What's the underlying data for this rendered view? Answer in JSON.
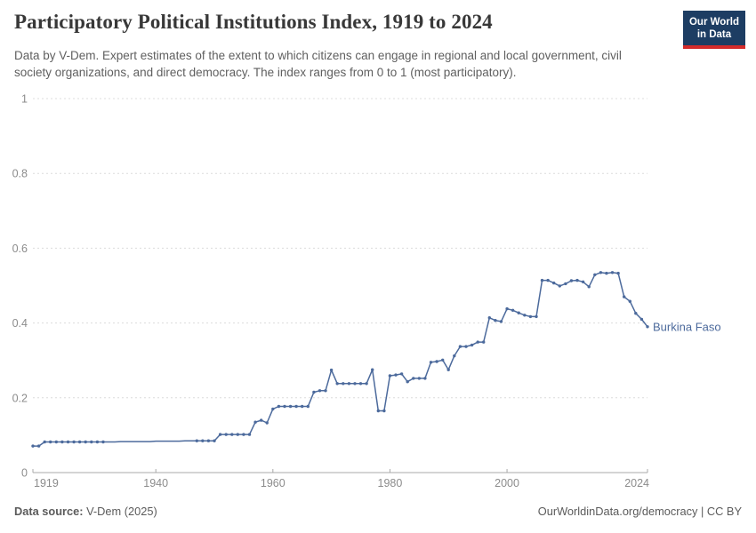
{
  "header": {
    "title": "Participatory Political Institutions Index, 1919 to 2024",
    "logo_line1": "Our World",
    "logo_line2": "in Data"
  },
  "subtitle": "Data by V-Dem. Expert estimates of the extent to which citizens can engage in regional and local government, civil society organizations, and direct democracy. The index ranges from 0 to 1 (most participatory).",
  "footer": {
    "source_label": "Data source:",
    "source_value": "V-Dem (2025)",
    "credit": "OurWorldinData.org/democracy | CC BY"
  },
  "colors": {
    "accent": "#4C6A9C",
    "logo_navy": "#1D3D63",
    "logo_red": "#D42B2B",
    "grid": "#DCDCDC",
    "axis": "#A8A8A8",
    "tick_label": "#8C8C8C",
    "text_muted": "#5B5B5B"
  },
  "chart_data": {
    "type": "line",
    "title": "Participatory Political Institutions Index, 1919 to 2024",
    "entity": "Burkina Faso",
    "xlabel": "",
    "ylabel": "",
    "xlim": [
      1919,
      2024
    ],
    "ylim": [
      0,
      1
    ],
    "x_ticks": [
      1919,
      1940,
      1960,
      1980,
      2000,
      2024
    ],
    "y_ticks": [
      0,
      0.2,
      0.4,
      0.6,
      0.8,
      1
    ],
    "y_tick_labels": [
      "0",
      "0.2",
      "0.4",
      "0.6",
      "0.8",
      "1"
    ],
    "grid": "dashed-horizontal",
    "legend_position": "end-of-line-label",
    "line_color": "#4C6A9C",
    "marker_gap_years": [
      1932,
      1946
    ],
    "points": [
      [
        1919,
        0.071
      ],
      [
        1920,
        0.071
      ],
      [
        1921,
        0.082
      ],
      [
        1922,
        0.082
      ],
      [
        1923,
        0.082
      ],
      [
        1924,
        0.082
      ],
      [
        1925,
        0.082
      ],
      [
        1926,
        0.082
      ],
      [
        1927,
        0.082
      ],
      [
        1928,
        0.082
      ],
      [
        1929,
        0.082
      ],
      [
        1930,
        0.082
      ],
      [
        1931,
        0.082
      ],
      [
        1932,
        0.082
      ],
      [
        1933,
        0.082
      ],
      [
        1934,
        0.083
      ],
      [
        1935,
        0.083
      ],
      [
        1936,
        0.083
      ],
      [
        1937,
        0.083
      ],
      [
        1938,
        0.083
      ],
      [
        1939,
        0.083
      ],
      [
        1940,
        0.084
      ],
      [
        1941,
        0.084
      ],
      [
        1942,
        0.084
      ],
      [
        1943,
        0.084
      ],
      [
        1944,
        0.084
      ],
      [
        1945,
        0.085
      ],
      [
        1946,
        0.085
      ],
      [
        1947,
        0.085
      ],
      [
        1948,
        0.085
      ],
      [
        1949,
        0.085
      ],
      [
        1950,
        0.085
      ],
      [
        1951,
        0.102
      ],
      [
        1952,
        0.102
      ],
      [
        1953,
        0.102
      ],
      [
        1954,
        0.102
      ],
      [
        1955,
        0.102
      ],
      [
        1956,
        0.102
      ],
      [
        1957,
        0.135
      ],
      [
        1958,
        0.14
      ],
      [
        1959,
        0.133
      ],
      [
        1960,
        0.17
      ],
      [
        1961,
        0.177
      ],
      [
        1962,
        0.177
      ],
      [
        1963,
        0.177
      ],
      [
        1964,
        0.177
      ],
      [
        1965,
        0.177
      ],
      [
        1966,
        0.177
      ],
      [
        1967,
        0.215
      ],
      [
        1968,
        0.219
      ],
      [
        1969,
        0.219
      ],
      [
        1970,
        0.274
      ],
      [
        1971,
        0.238
      ],
      [
        1972,
        0.238
      ],
      [
        1973,
        0.238
      ],
      [
        1974,
        0.238
      ],
      [
        1975,
        0.238
      ],
      [
        1976,
        0.238
      ],
      [
        1977,
        0.275
      ],
      [
        1978,
        0.165
      ],
      [
        1979,
        0.165
      ],
      [
        1980,
        0.259
      ],
      [
        1981,
        0.261
      ],
      [
        1982,
        0.264
      ],
      [
        1983,
        0.243
      ],
      [
        1984,
        0.252
      ],
      [
        1985,
        0.252
      ],
      [
        1986,
        0.252
      ],
      [
        1987,
        0.295
      ],
      [
        1988,
        0.297
      ],
      [
        1989,
        0.301
      ],
      [
        1990,
        0.275
      ],
      [
        1991,
        0.312
      ],
      [
        1992,
        0.337
      ],
      [
        1993,
        0.337
      ],
      [
        1994,
        0.341
      ],
      [
        1995,
        0.349
      ],
      [
        1996,
        0.349
      ],
      [
        1997,
        0.414
      ],
      [
        1998,
        0.407
      ],
      [
        1999,
        0.404
      ],
      [
        2000,
        0.438
      ],
      [
        2001,
        0.434
      ],
      [
        2002,
        0.427
      ],
      [
        2003,
        0.421
      ],
      [
        2004,
        0.417
      ],
      [
        2005,
        0.417
      ],
      [
        2006,
        0.514
      ],
      [
        2007,
        0.514
      ],
      [
        2008,
        0.507
      ],
      [
        2009,
        0.499
      ],
      [
        2010,
        0.505
      ],
      [
        2011,
        0.513
      ],
      [
        2012,
        0.514
      ],
      [
        2013,
        0.51
      ],
      [
        2014,
        0.497
      ],
      [
        2015,
        0.529
      ],
      [
        2016,
        0.535
      ],
      [
        2017,
        0.533
      ],
      [
        2018,
        0.535
      ],
      [
        2019,
        0.533
      ],
      [
        2020,
        0.47
      ],
      [
        2021,
        0.458
      ],
      [
        2022,
        0.426
      ],
      [
        2023,
        0.41
      ],
      [
        2024,
        0.39
      ]
    ]
  }
}
